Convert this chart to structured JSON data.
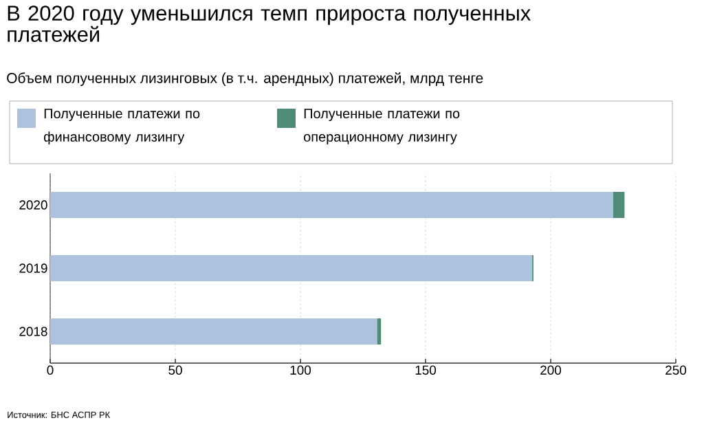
{
  "chart_data": {
    "type": "bar",
    "orientation": "horizontal",
    "stacked": true,
    "title": "В 2020 году уменьшился темп прироста полученных платежей",
    "subtitle": "Объем полученных лизинговых (в т.ч. арендных) платежей, млрд тенге",
    "categories": [
      "2020",
      "2019",
      "2018"
    ],
    "series": [
      {
        "name": "Полученные платежи по финансовому лизингу",
        "color": "#adc2dc",
        "values": [
          225.0,
          192.6,
          130.6
        ]
      },
      {
        "name": "Полученные платежи по операционному лизингу",
        "color": "#4e8c76",
        "values": [
          4.5,
          0.5,
          1.6
        ]
      }
    ],
    "xlim": [
      0,
      250
    ],
    "xticks": [
      0,
      50,
      100,
      150,
      200,
      250
    ],
    "grid": "x",
    "legend": "top",
    "annotations": [
      "Источник: БНС АСПР РК"
    ]
  }
}
